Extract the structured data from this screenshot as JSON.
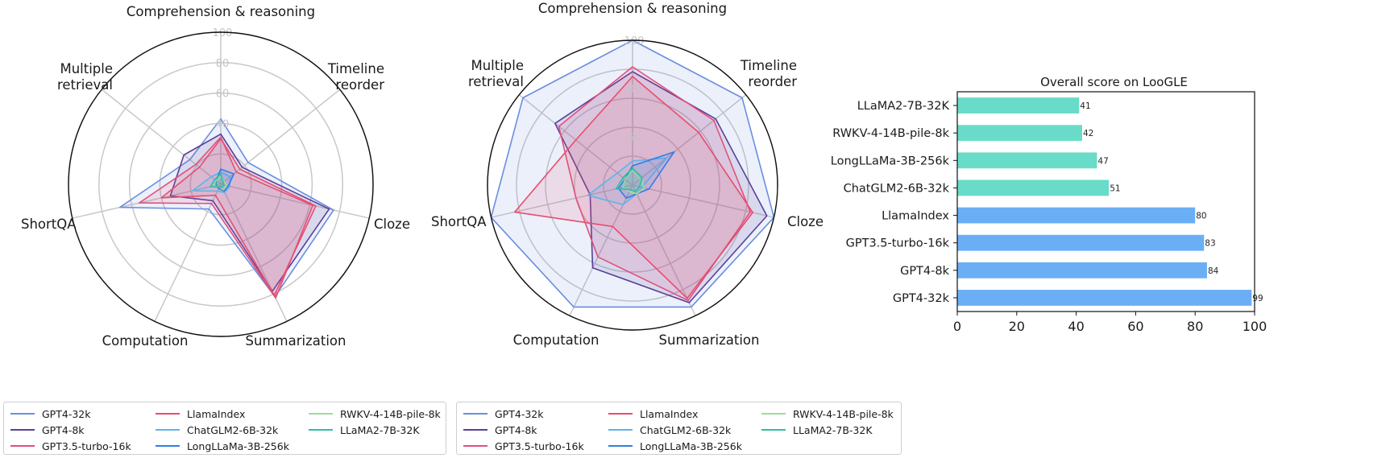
{
  "radar_common": {
    "axes": [
      "Comprehension & reasoning",
      "Timeline\nreorder",
      "Cloze",
      "Summarization",
      "Computation",
      "ShortQA",
      "Multiple\nretrieval"
    ]
  },
  "legend": {
    "entries": [
      {
        "name": "GPT4-32k",
        "color": "#6a8ee0"
      },
      {
        "name": "GPT4-8k",
        "color": "#5a3f98"
      },
      {
        "name": "GPT3.5-turbo-16k",
        "color": "#e0507a"
      },
      {
        "name": "LlamaIndex",
        "color": "#e84d6c"
      },
      {
        "name": "ChatGLM2-6B-32k",
        "color": "#5fb3ea"
      },
      {
        "name": "LongLLaMa-3B-256k",
        "color": "#2f7ee6"
      },
      {
        "name": "RWKV-4-14B-pile-8k",
        "color": "#9fdc9a"
      },
      {
        "name": "LLaMA2-7B-32K",
        "color": "#2bbfa3"
      }
    ]
  },
  "chart_data": [
    {
      "type": "radar",
      "title": "",
      "axes": [
        "Comprehension & reasoning",
        "Timeline reorder",
        "Cloze",
        "Summarization",
        "Computation",
        "ShortQA",
        "Multiple retrieval"
      ],
      "rlim": [
        0,
        100
      ],
      "rticks": [
        40,
        60,
        80,
        100
      ],
      "series": [
        {
          "name": "GPT4-32k",
          "values": [
            43,
            23,
            76,
            82,
            18,
            68,
            26
          ]
        },
        {
          "name": "GPT4-8k",
          "values": [
            33,
            18,
            73,
            78,
            12,
            34,
            31
          ]
        },
        {
          "name": "GPT3.5-turbo-16k",
          "values": [
            31,
            13,
            62,
            83,
            14,
            55,
            21
          ]
        },
        {
          "name": "LlamaIndex",
          "values": [
            30,
            16,
            64,
            81,
            8,
            40,
            18
          ]
        },
        {
          "name": "ChatGLM2-6B-32k",
          "values": [
            8,
            8,
            6,
            6,
            5,
            19,
            8
          ]
        },
        {
          "name": "LongLLaMa-3B-256k",
          "values": [
            10,
            11,
            5,
            5,
            3,
            3,
            4
          ]
        },
        {
          "name": "RWKV-4-14B-pile-8k",
          "values": [
            5,
            3,
            4,
            4,
            2,
            5,
            4
          ]
        },
        {
          "name": "LLaMA2-7B-32K",
          "values": [
            7,
            2,
            2,
            2,
            2,
            7,
            5
          ]
        }
      ]
    },
    {
      "type": "radar",
      "title": "",
      "axes": [
        "Comprehension & reasoning",
        "Timeline reorder",
        "Cloze",
        "Summarization",
        "Computation",
        "ShortQA",
        "Multiple retrieval"
      ],
      "rlim": [
        40,
        100
      ],
      "rticks": [
        60,
        80,
        100
      ],
      "series": [
        {
          "name": "GPT4-32k",
          "values": [
            100,
            98,
            100,
            96,
            96,
            100,
            98
          ]
        },
        {
          "name": "GPT4-8k",
          "values": [
            87,
            84,
            97,
            94,
            78,
            58,
            81
          ]
        },
        {
          "name": "GPT3.5-turbo-16k",
          "values": [
            89,
            83,
            90,
            93,
            73,
            64,
            79
          ]
        },
        {
          "name": "LlamaIndex",
          "values": [
            85,
            75,
            91,
            92,
            59,
            90,
            70
          ]
        },
        {
          "name": "ChatGLM2-6B-32k",
          "values": [
            50,
            58,
            44,
            44,
            49,
            59,
            48
          ]
        },
        {
          "name": "LongLLaMa-3B-256k",
          "values": [
            48,
            62,
            47,
            44,
            46,
            46,
            44
          ]
        },
        {
          "name": "RWKV-4-14B-pile-8k",
          "values": [
            46,
            44,
            45,
            44,
            43,
            44,
            44
          ]
        },
        {
          "name": "LLaMA2-7B-32K",
          "values": [
            47,
            45,
            43,
            43,
            42,
            47,
            45
          ]
        }
      ]
    },
    {
      "type": "bar",
      "orientation": "horizontal",
      "title": "Overall score on LooGLE",
      "categories": [
        "GPT4-32k",
        "GPT4-8k",
        "GPT3.5-turbo-16k",
        "LlamaIndex",
        "ChatGLM2-6B-32k",
        "LongLLaMa-3B-256k",
        "RWKV-4-14B-pile-8k",
        "LLaMA2-7B-32K"
      ],
      "values": [
        99,
        84,
        83,
        80,
        51,
        47,
        42,
        41
      ],
      "data_labels": [
        "99",
        "84",
        "83",
        "80",
        "51",
        "47",
        "42",
        "41"
      ],
      "colors": [
        "#6aaff5",
        "#6aaff5",
        "#6aaff5",
        "#6aaff5",
        "#68dcc8",
        "#68dcc8",
        "#68dcc8",
        "#68dcc8"
      ],
      "xlim": [
        0,
        100
      ],
      "xticks": [
        0,
        20,
        40,
        60,
        80,
        100
      ]
    }
  ]
}
